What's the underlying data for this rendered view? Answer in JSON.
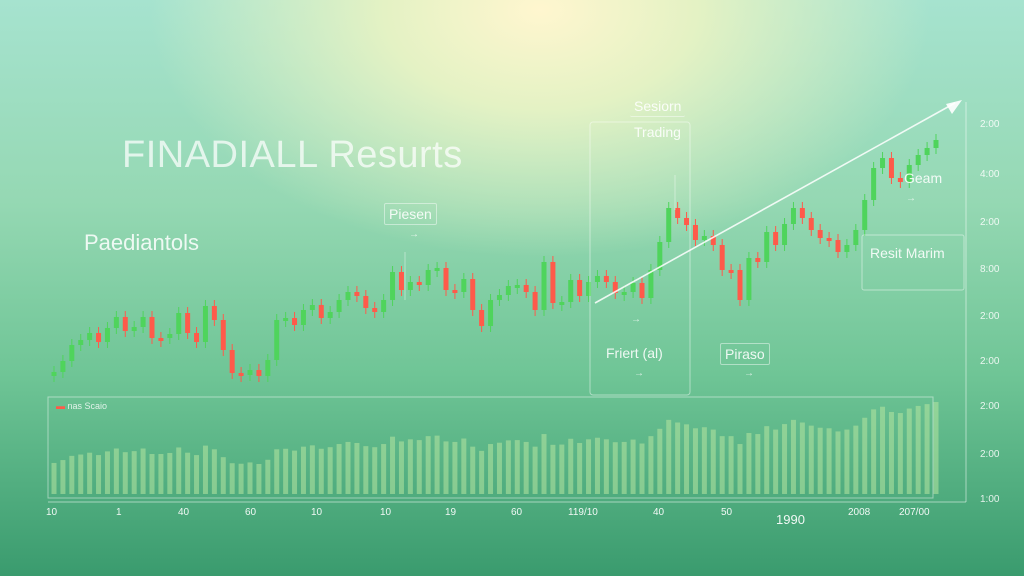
{
  "title": "FINADIALL Resurts",
  "subtitle": "Paediantols",
  "annotations": {
    "session": "Sesiorn",
    "trading": "Trading",
    "piesen": "Piesen",
    "gean": "Geam",
    "result": "Resit Marim",
    "friert": "Friert (al)",
    "piraso": "Piraso"
  },
  "volume_label": "nas Scaio",
  "y_ticks": [
    "2:00",
    "4:00",
    "2:00",
    "8:00",
    "2:00",
    "2:00",
    "2:00",
    "2:00",
    "1:00"
  ],
  "x_ticks": [
    "10",
    "1",
    "40",
    "60",
    "10",
    "10",
    "19",
    "60",
    "119/10",
    "40",
    "50",
    "2008",
    "207/00"
  ],
  "x_title": "1990",
  "colors": {
    "up": "#4fd45c",
    "down": "#ff5a4a",
    "volume": "#b6e6a0",
    "trend": "#ffffff"
  },
  "chart_data": {
    "type": "candlestick",
    "close": [
      372,
      361,
      345,
      340,
      333,
      342,
      328,
      317,
      331,
      327,
      317,
      338,
      338,
      334,
      313,
      333,
      342,
      306,
      320,
      350,
      373,
      375,
      370,
      376,
      360,
      320,
      318,
      325,
      310,
      305,
      318,
      312,
      300,
      292,
      296,
      308,
      312,
      300,
      272,
      290,
      282,
      285,
      270,
      268,
      290,
      292,
      279,
      310,
      326,
      300,
      295,
      286,
      285,
      292,
      310,
      262,
      303,
      302,
      280,
      296,
      282,
      276,
      282,
      293,
      292,
      283,
      298,
      270,
      242,
      208,
      218,
      225,
      240,
      236,
      245,
      270,
      270,
      300,
      258,
      262,
      232,
      245,
      224,
      208,
      218,
      230,
      238,
      240,
      252,
      245,
      230,
      200,
      168,
      158,
      178,
      182,
      165,
      155,
      148,
      140
    ],
    "trend_line": [
      [
        595,
        303
      ],
      [
        955,
        103
      ]
    ]
  }
}
